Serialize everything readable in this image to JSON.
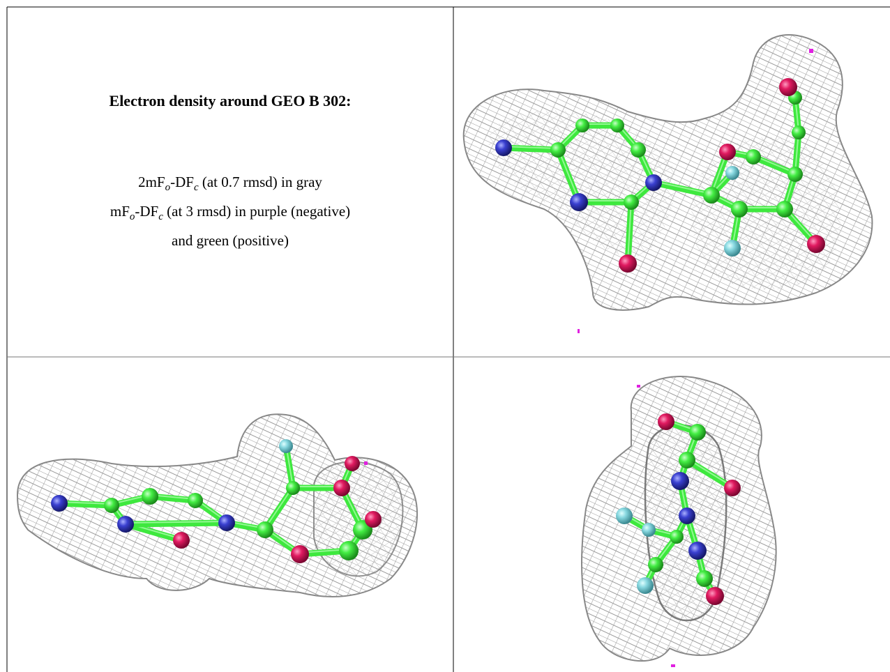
{
  "title": "Electron density around GEO B 302:",
  "legend_lines": [
    [
      "2mF",
      "o",
      "-DF",
      "c",
      " (at 0.7 rmsd) in gray"
    ],
    [
      "mF",
      "o",
      "-DF",
      "c",
      " (at 3 rmsd) in purple (negative)"
    ],
    [
      "and green (positive)"
    ]
  ]
}
